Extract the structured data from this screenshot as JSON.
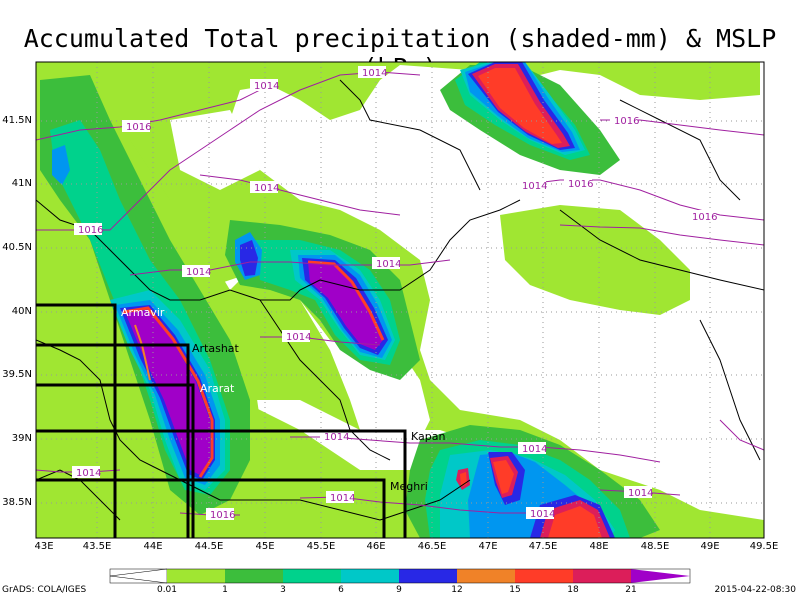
{
  "title": "Accumulated Total precipitation (shaded-mm) & MSLP (hPa)",
  "lat_labels": [
    "41.5N",
    "41N",
    "40.5N",
    "40N",
    "39.5N",
    "39N",
    "38.5N"
  ],
  "lon_labels": [
    "43E",
    "43.5E",
    "44E",
    "44.5E",
    "45E",
    "45.5E",
    "46E",
    "46.5E",
    "47E",
    "47.5E",
    "48E",
    "48.5E",
    "49E",
    "49.5E"
  ],
  "isobar_labels": [
    "1014",
    "1014",
    "1016",
    "1016",
    "1014",
    "1016",
    "1016",
    "1014",
    "1016",
    "1014",
    "1014",
    "1014",
    "1014",
    "1014",
    "1014",
    "1014",
    "1014",
    "1014",
    "1016"
  ],
  "cities": [
    "Armavir",
    "Artashat",
    "Ararat",
    "Kapan",
    "Meghri"
  ],
  "colorbar": {
    "labels": [
      "0.01",
      "1",
      "3",
      "6",
      "9",
      "12",
      "15",
      "18",
      "21"
    ],
    "colors": [
      "#a0e632",
      "#3cbe3c",
      "#00d28c",
      "#00c8c8",
      "#0096f0",
      "#2828e6",
      "#f08228",
      "#ff3c28",
      "#dc1e5a",
      "#a000c8"
    ]
  },
  "footer_left": "GrADS: COLA/IGES",
  "footer_right": "2015-04-22-08:30"
}
